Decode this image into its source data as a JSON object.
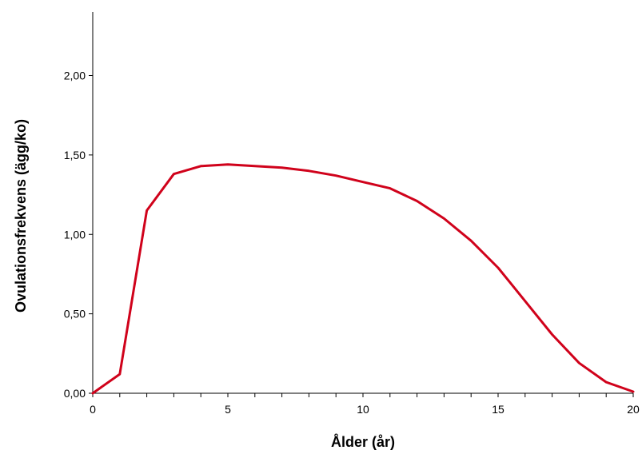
{
  "chart_data": {
    "type": "line",
    "title": "",
    "xlabel": "Ålder (år)",
    "ylabel": "Ovulationsfrekvens (ägg/ko)",
    "xlim": [
      0,
      20
    ],
    "ylim": [
      0,
      2.4
    ],
    "x_ticks": [
      0,
      5,
      10,
      15,
      20
    ],
    "x_tick_labels": [
      "0",
      "5",
      "10",
      "15",
      "20"
    ],
    "y_ticks": [
      0,
      0.5,
      1.0,
      1.5,
      2.0
    ],
    "y_tick_labels": [
      "0,00",
      "0,50",
      "1,00",
      "1,50",
      "2,00"
    ],
    "grid": false,
    "legend": "none",
    "series": [
      {
        "color": "#d0021b",
        "x": [
          0,
          1,
          2,
          3,
          4,
          5,
          6,
          7,
          8,
          9,
          10,
          11,
          12,
          13,
          14,
          15,
          16,
          17,
          18,
          19,
          20
        ],
        "y": [
          0.0,
          0.12,
          1.15,
          1.38,
          1.43,
          1.44,
          1.43,
          1.42,
          1.4,
          1.37,
          1.33,
          1.29,
          1.21,
          1.1,
          0.96,
          0.79,
          0.58,
          0.37,
          0.19,
          0.07,
          0.01
        ]
      }
    ]
  }
}
